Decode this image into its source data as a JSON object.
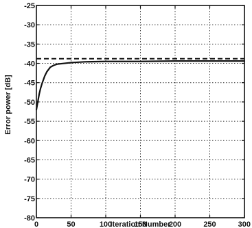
{
  "chart_data": {
    "type": "line",
    "title": "",
    "xlabel": "Iteration Number",
    "ylabel": "Error power [dB]",
    "xlim": [
      0,
      300
    ],
    "ylim": [
      -80,
      -25
    ],
    "xticks": [
      0,
      50,
      100,
      150,
      200,
      250,
      300
    ],
    "yticks": [
      -25,
      -30,
      -35,
      -40,
      -45,
      -50,
      -55,
      -60,
      -65,
      -70,
      -75,
      -80
    ],
    "xtick_labels": [
      "0",
      "50",
      "100",
      "150",
      "200",
      "250",
      "300"
    ],
    "ytick_labels": [
      "-25",
      "-30",
      "-35",
      "-40",
      "-45",
      "-50",
      "-55",
      "-60",
      "-65",
      "-70",
      "-75",
      "-80"
    ],
    "grid": true,
    "series": [
      {
        "style": "solid",
        "color": "#111111",
        "x": [
          0,
          2,
          4,
          6,
          8,
          10,
          12,
          15,
          20,
          25,
          30,
          40,
          50,
          70,
          100,
          150,
          200,
          250,
          300
        ],
        "y": [
          -52,
          -50,
          -48,
          -46.5,
          -45.3,
          -44.3,
          -43.3,
          -42.2,
          -41,
          -40.5,
          -40.2,
          -40,
          -39.8,
          -39.6,
          -39.5,
          -39.5,
          -39.4,
          -39.4,
          -39.4
        ]
      },
      {
        "style": "dashed",
        "color": "#111111",
        "x": [
          0,
          300
        ],
        "y": [
          -38.8,
          -38.8
        ]
      }
    ]
  }
}
